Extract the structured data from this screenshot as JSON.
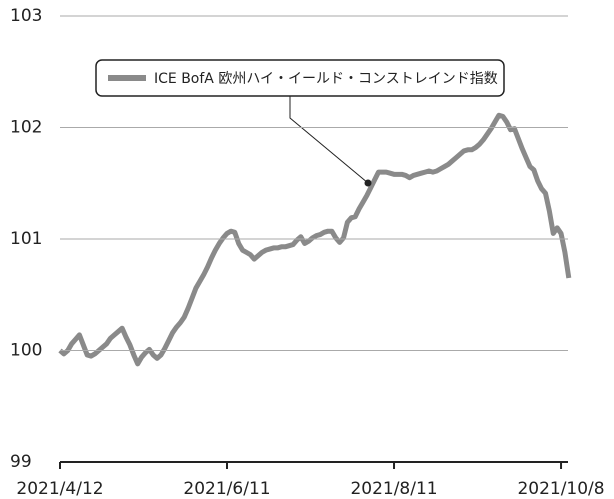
{
  "chart_data": {
    "type": "line",
    "categories": [
      "2021/4/12",
      null,
      null,
      null,
      null,
      null,
      null,
      null,
      null,
      null,
      null,
      null,
      null,
      null,
      null,
      null,
      null,
      null,
      null,
      null,
      null,
      null,
      null,
      null,
      null,
      null,
      null,
      null,
      null,
      null,
      null,
      null,
      null,
      null,
      null,
      null,
      null,
      null,
      null,
      null,
      null,
      null,
      null,
      "2021/6/11",
      null,
      null,
      null,
      null,
      null,
      null,
      null,
      null,
      null,
      null,
      null,
      null,
      null,
      null,
      null,
      null,
      null,
      null,
      null,
      null,
      null,
      null,
      null,
      null,
      null,
      null,
      null,
      null,
      null,
      null,
      null,
      null,
      null,
      null,
      null,
      null,
      null,
      null,
      null,
      null,
      null,
      null,
      "2021/8/11",
      null,
      null,
      null,
      null,
      null,
      null,
      null,
      null,
      null,
      null,
      null,
      null,
      null,
      null,
      null,
      null,
      null,
      null,
      null,
      null,
      null,
      null,
      null,
      null,
      null,
      null,
      null,
      null,
      null,
      null,
      null,
      null,
      null,
      null,
      null,
      null,
      null,
      null,
      null,
      null,
      null,
      null,
      "2021/10/8",
      null,
      null
    ],
    "series": [
      {
        "name": "ICE BofA 欧州ハイ・イールド・コンストレインド指数",
        "color": "#8a8a8a",
        "values": [
          100.0,
          99.97,
          100.0,
          100.06,
          100.1,
          100.14,
          100.05,
          99.96,
          99.95,
          99.97,
          100.0,
          100.03,
          100.06,
          100.11,
          100.14,
          100.17,
          100.2,
          100.12,
          100.05,
          99.96,
          99.88,
          99.94,
          99.98,
          100.01,
          99.96,
          99.93,
          99.96,
          100.02,
          100.09,
          100.16,
          100.21,
          100.25,
          100.3,
          100.38,
          100.47,
          100.56,
          100.62,
          100.68,
          100.75,
          100.83,
          100.9,
          100.96,
          101.01,
          101.05,
          101.07,
          101.06,
          100.96,
          100.9,
          100.88,
          100.86,
          100.82,
          100.85,
          100.88,
          100.9,
          100.91,
          100.92,
          100.92,
          100.93,
          100.93,
          100.94,
          100.95,
          100.99,
          101.02,
          100.96,
          100.98,
          101.01,
          101.03,
          101.04,
          101.06,
          101.07,
          101.07,
          101.01,
          100.97,
          101.01,
          101.15,
          101.19,
          101.2,
          101.27,
          101.33,
          101.39,
          101.46,
          101.53,
          101.6,
          101.6,
          101.6,
          101.59,
          101.58,
          101.58,
          101.58,
          101.57,
          101.55,
          101.57,
          101.58,
          101.59,
          101.6,
          101.61,
          101.6,
          101.61,
          101.63,
          101.65,
          101.67,
          101.7,
          101.73,
          101.76,
          101.79,
          101.8,
          101.8,
          101.82,
          101.85,
          101.89,
          101.94,
          101.99,
          102.05,
          102.11,
          102.1,
          102.05,
          101.98,
          101.99,
          101.9,
          101.81,
          101.73,
          101.65,
          101.62,
          101.52,
          101.45,
          101.41,
          101.25,
          101.05,
          101.1,
          101.05,
          100.88,
          100.65
        ]
      }
    ],
    "ylim": [
      99,
      103
    ],
    "yticks": [
      99,
      100,
      101,
      102,
      103
    ],
    "grid": true
  }
}
